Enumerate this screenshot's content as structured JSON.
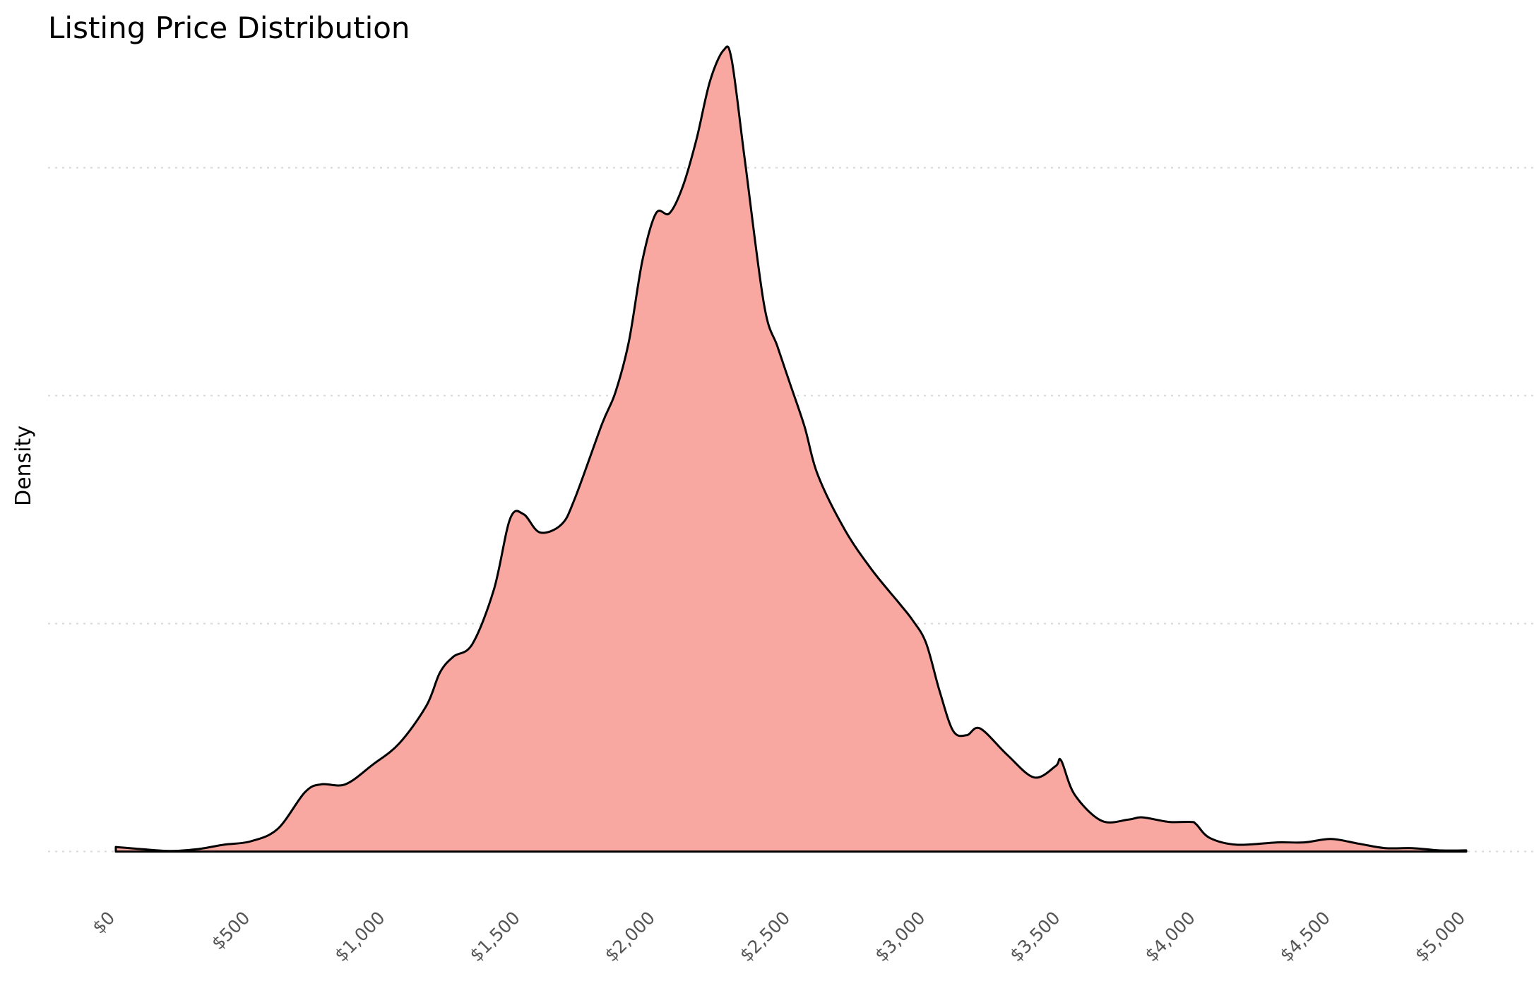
{
  "chart_data": {
    "type": "area",
    "title": "Listing Price Distribution",
    "xlabel": "",
    "ylabel": "Density",
    "xlim": [
      0,
      5000
    ],
    "ylim": [
      -3e-05,
      0.00071
    ],
    "x_ticks": [
      0,
      500,
      1000,
      1500,
      2000,
      2500,
      3000,
      3500,
      4000,
      4500,
      5000
    ],
    "x_tick_labels": [
      "$0",
      "$500",
      "$1,000",
      "$1,500",
      "$2,000",
      "$2,500",
      "$3,000",
      "$3,500",
      "$4,000",
      "$4,500",
      "$5,000"
    ],
    "y_grid": [
      0,
      0.0002,
      0.0004,
      0.0006
    ],
    "grid": "horizontal-dotted",
    "fill_color": "#f9a7a1",
    "line_color": "#000000",
    "series": [
      {
        "x": [
          0,
          100,
          200,
          300,
          400,
          500,
          600,
          700,
          760,
          850,
          950,
          1050,
          1150,
          1200,
          1250,
          1320,
          1400,
          1460,
          1510,
          1570,
          1650,
          1700,
          1800,
          1850,
          1900,
          1950,
          2000,
          2050,
          2100,
          2150,
          2200,
          2250,
          2280,
          2330,
          2400,
          2450,
          2500,
          2550,
          2600,
          2700,
          2800,
          2900,
          2950,
          3000,
          3050,
          3100,
          3150,
          3200,
          3300,
          3400,
          3480,
          3500,
          3550,
          3650,
          3750,
          3800,
          3900,
          3980,
          4000,
          4050,
          4150,
          4300,
          4400,
          4500,
          4600,
          4700,
          4800,
          4900,
          5000
        ],
        "y": [
          4e-06,
          2e-06,
          5e-07,
          2e-06,
          6e-06,
          9e-06,
          2e-05,
          5.2e-05,
          5.9e-05,
          5.9e-05,
          7.6e-05,
          9.5e-05,
          0.000128,
          0.000157,
          0.000171,
          0.000182,
          0.00023,
          0.000292,
          0.000296,
          0.00028,
          0.000287,
          0.00031,
          0.000375,
          0.000403,
          0.000448,
          0.000519,
          0.00056,
          0.00056,
          0.000584,
          0.000625,
          0.000676,
          0.000703,
          0.000695,
          0.000605,
          0.00048,
          0.000443,
          0.000408,
          0.000373,
          0.00033,
          0.000282,
          0.000247,
          0.000218,
          0.000203,
          0.000183,
          0.000141,
          0.000106,
          0.000102,
          0.000108,
          8.5e-05,
          6.5e-05,
          7.5e-05,
          8e-05,
          5e-05,
          2.7e-05,
          2.8e-05,
          3e-05,
          2.6e-05,
          2.6e-05,
          2.4e-05,
          1.2e-05,
          6e-06,
          8e-06,
          8e-06,
          1.1e-05,
          7e-06,
          3e-06,
          3e-06,
          1e-06,
          1e-06
        ]
      }
    ]
  }
}
